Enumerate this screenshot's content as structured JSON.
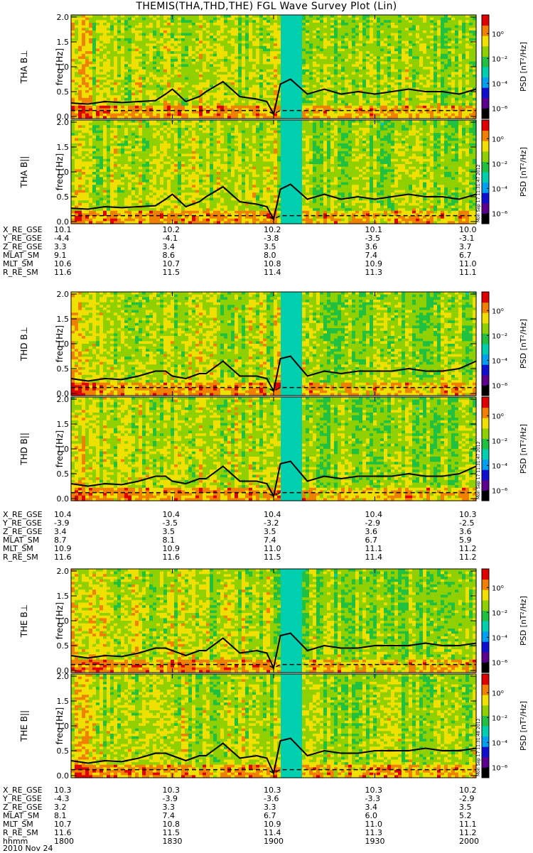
{
  "title": "THEMIS(THA,THD,THE) FGL Wave Survey Plot (Lin)",
  "colorbar": {
    "label": "PSD [nT²/Hz]",
    "ticks": [
      "10⁰",
      "10⁻²",
      "10⁻⁴",
      "10⁻⁶"
    ]
  },
  "y_ticks": [
    "2.0",
    "1.5",
    "1.0",
    "0.5",
    "0.0"
  ],
  "panels": [
    {
      "probe": "THA",
      "label": "THA B⊥",
      "ylabel": "freq [Hz]",
      "stamp": ""
    },
    {
      "probe": "THA",
      "label": "THA B||",
      "ylabel": "freq [Hz]",
      "stamp": "Mon Sep 17 11:31:47 2012"
    },
    {
      "probe": "THD",
      "label": "THD B⊥",
      "ylabel": "freq [Hz]",
      "stamp": ""
    },
    {
      "probe": "THD",
      "label": "THD B||",
      "ylabel": "freq [Hz]",
      "stamp": "Mon Sep 17 11:31:47 2012"
    },
    {
      "probe": "THE",
      "label": "THE B⊥",
      "ylabel": "freq [Hz]",
      "stamp": ""
    },
    {
      "probe": "THE",
      "label": "THE B||",
      "ylabel": "freq [Hz]",
      "stamp": "Mon Sep 17 11:31:48 2012"
    }
  ],
  "orbit_blocks": [
    {
      "probe": "THA",
      "rows": [
        {
          "label": "X_RE_GSE",
          "values": [
            "10.1",
            "10.2",
            "10.2",
            "10.1",
            "10.0"
          ]
        },
        {
          "label": "Y_RE_GSE",
          "values": [
            "-4.4",
            "-4.1",
            "-3.8",
            "-3.5",
            "-3.1"
          ]
        },
        {
          "label": "Z_RE_GSE",
          "values": [
            "3.3",
            "3.4",
            "3.5",
            "3.6",
            "3.7"
          ]
        },
        {
          "label": "MLAT_SM",
          "values": [
            "9.1",
            "8.6",
            "8.0",
            "7.4",
            "6.7"
          ]
        },
        {
          "label": "MLT_SM",
          "values": [
            "10.6",
            "10.7",
            "10.8",
            "10.9",
            "11.0"
          ]
        },
        {
          "label": "R_RE_SM",
          "values": [
            "11.6",
            "11.5",
            "11.4",
            "11.3",
            "11.1"
          ]
        }
      ]
    },
    {
      "probe": "THD",
      "rows": [
        {
          "label": "X_RE_GSE",
          "values": [
            "10.4",
            "10.4",
            "10.4",
            "10.4",
            "10.3"
          ]
        },
        {
          "label": "Y_RE_GSE",
          "values": [
            "-3.9",
            "-3.5",
            "-3.2",
            "-2.9",
            "-2.5"
          ]
        },
        {
          "label": "Z_RE_GSE",
          "values": [
            "3.4",
            "3.5",
            "3.5",
            "3.6",
            "3.6"
          ]
        },
        {
          "label": "MLAT_SM",
          "values": [
            "8.7",
            "8.1",
            "7.4",
            "6.7",
            "5.9"
          ]
        },
        {
          "label": "MLT_SM",
          "values": [
            "10.9",
            "10.9",
            "11.0",
            "11.1",
            "11.2"
          ]
        },
        {
          "label": "R_RE_SM",
          "values": [
            "11.6",
            "11.6",
            "11.5",
            "11.4",
            "11.2"
          ]
        }
      ]
    },
    {
      "probe": "THE",
      "rows": [
        {
          "label": "X_RE_GSE",
          "values": [
            "10.3",
            "10.3",
            "10.3",
            "10.3",
            "10.2"
          ]
        },
        {
          "label": "Y_RE_GSE",
          "values": [
            "-4.3",
            "-3.9",
            "-3.6",
            "-3.3",
            "-2.9"
          ]
        },
        {
          "label": "Z_RE_GSE",
          "values": [
            "3.2",
            "3.3",
            "3.3",
            "3.4",
            "3.5"
          ]
        },
        {
          "label": "MLAT_SM",
          "values": [
            "8.1",
            "7.4",
            "6.7",
            "6.0",
            "5.2"
          ]
        },
        {
          "label": "MLT_SM",
          "values": [
            "10.7",
            "10.8",
            "10.9",
            "11.0",
            "11.1"
          ]
        },
        {
          "label": "R_RE_SM",
          "values": [
            "11.6",
            "11.5",
            "11.4",
            "11.3",
            "11.2"
          ]
        },
        {
          "label": "hhmm",
          "values": [
            "1800",
            "1830",
            "1900",
            "1930",
            "2000"
          ]
        }
      ]
    }
  ],
  "date_label": "2010 Nov 24",
  "chart_data": {
    "type": "heatmap",
    "title": "THEMIS(THA,THD,THE) FGL Wave Survey Plot (Lin)",
    "ylabel": "freq [Hz]",
    "ylim": [
      0.0,
      2.0
    ],
    "x_ticks": [
      "1800",
      "1830",
      "1900",
      "1930",
      "2000"
    ],
    "xlim": [
      "1800",
      "2000"
    ],
    "colorbar_label": "PSD [nT²/Hz]",
    "colorbar_ticks": [
      "10⁰",
      "10⁻²",
      "10⁻⁴",
      "10⁻⁶"
    ],
    "colorscale": [
      "#000000",
      "#5a008c",
      "#1010d0",
      "#00a0f0",
      "#00d0b0",
      "#20c040",
      "#90d000",
      "#f0e000",
      "#f08000",
      "#e00000"
    ],
    "line_x": [
      "1800",
      "1805",
      "1810",
      "1815",
      "1820",
      "1825",
      "1828",
      "1830",
      "1834",
      "1838",
      "1840",
      "1845",
      "1850",
      "1855",
      "1858",
      "1900",
      "1902",
      "1905",
      "1910",
      "1915",
      "1920",
      "1925",
      "1930",
      "1935",
      "1940",
      "1945",
      "1950",
      "1955",
      "2000"
    ],
    "gap_interval": [
      "1902",
      "1908"
    ],
    "series": [
      {
        "name": "THA B⊥",
        "line_values": [
          0.27,
          0.25,
          0.3,
          0.28,
          0.3,
          0.32,
          0.45,
          0.55,
          0.3,
          0.4,
          0.5,
          0.7,
          0.4,
          0.35,
          0.3,
          0.05,
          0.65,
          0.75,
          0.45,
          0.55,
          0.45,
          0.5,
          0.45,
          0.5,
          0.55,
          0.5,
          0.5,
          0.45,
          0.55
        ]
      },
      {
        "name": "THA B||",
        "line_values": [
          0.27,
          0.25,
          0.3,
          0.28,
          0.3,
          0.32,
          0.45,
          0.55,
          0.3,
          0.4,
          0.5,
          0.7,
          0.4,
          0.35,
          0.3,
          0.05,
          0.65,
          0.75,
          0.45,
          0.55,
          0.45,
          0.5,
          0.45,
          0.5,
          0.55,
          0.5,
          0.5,
          0.45,
          0.55
        ]
      },
      {
        "name": "THD B⊥",
        "line_values": [
          0.3,
          0.25,
          0.3,
          0.28,
          0.35,
          0.45,
          0.45,
          0.35,
          0.3,
          0.4,
          0.4,
          0.65,
          0.35,
          0.35,
          0.3,
          0.05,
          0.7,
          0.75,
          0.35,
          0.45,
          0.4,
          0.45,
          0.45,
          0.45,
          0.5,
          0.45,
          0.45,
          0.5,
          0.65
        ]
      },
      {
        "name": "THD B||",
        "line_values": [
          0.3,
          0.25,
          0.3,
          0.28,
          0.35,
          0.45,
          0.45,
          0.35,
          0.3,
          0.4,
          0.4,
          0.65,
          0.35,
          0.35,
          0.3,
          0.05,
          0.7,
          0.75,
          0.35,
          0.45,
          0.4,
          0.45,
          0.45,
          0.45,
          0.5,
          0.45,
          0.45,
          0.5,
          0.65
        ]
      },
      {
        "name": "THE B⊥",
        "line_values": [
          0.3,
          0.25,
          0.3,
          0.28,
          0.35,
          0.45,
          0.45,
          0.4,
          0.3,
          0.4,
          0.4,
          0.65,
          0.35,
          0.4,
          0.35,
          0.05,
          0.7,
          0.75,
          0.4,
          0.5,
          0.45,
          0.45,
          0.5,
          0.5,
          0.5,
          0.55,
          0.5,
          0.5,
          0.55
        ]
      },
      {
        "name": "THE B||",
        "line_values": [
          0.3,
          0.25,
          0.3,
          0.28,
          0.35,
          0.45,
          0.45,
          0.4,
          0.3,
          0.4,
          0.4,
          0.65,
          0.35,
          0.4,
          0.35,
          0.05,
          0.7,
          0.75,
          0.4,
          0.5,
          0.45,
          0.45,
          0.5,
          0.5,
          0.5,
          0.55,
          0.5,
          0.5,
          0.55
        ]
      }
    ]
  }
}
